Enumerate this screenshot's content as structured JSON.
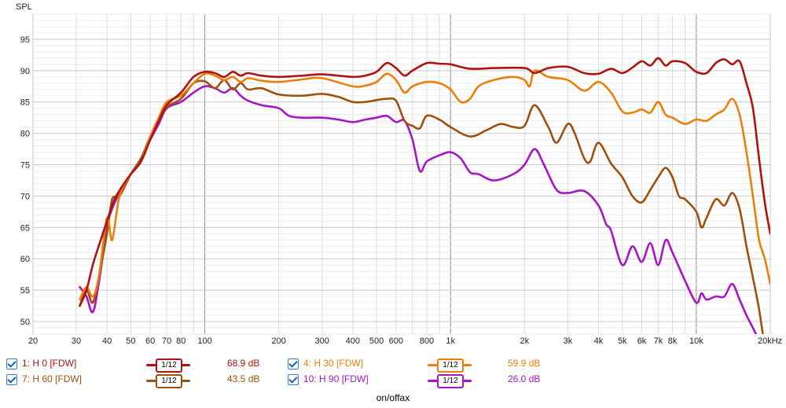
{
  "chart_data": {
    "type": "line",
    "ylabel": "SPL",
    "xlabel": "on/offax",
    "x_scale": "log",
    "xlim": [
      20,
      20000
    ],
    "ylim": [
      48,
      99
    ],
    "grid": true,
    "y_ticks": [
      50,
      55,
      60,
      65,
      70,
      75,
      80,
      85,
      90,
      95
    ],
    "x_ticks": [
      {
        "v": 20,
        "label": "20"
      },
      {
        "v": 30,
        "label": "30"
      },
      {
        "v": 40,
        "label": "40"
      },
      {
        "v": 50,
        "label": "50"
      },
      {
        "v": 60,
        "label": "60"
      },
      {
        "v": 70,
        "label": "70"
      },
      {
        "v": 80,
        "label": "80"
      },
      {
        "v": 100,
        "label": "100"
      },
      {
        "v": 200,
        "label": "200"
      },
      {
        "v": 300,
        "label": "300"
      },
      {
        "v": 400,
        "label": "400"
      },
      {
        "v": 500,
        "label": "500"
      },
      {
        "v": 600,
        "label": "600"
      },
      {
        "v": 800,
        "label": "800"
      },
      {
        "v": 1000,
        "label": "1k"
      },
      {
        "v": 2000,
        "label": "2k"
      },
      {
        "v": 3000,
        "label": "3k"
      },
      {
        "v": 4000,
        "label": "4k"
      },
      {
        "v": 5000,
        "label": "5k"
      },
      {
        "v": 6000,
        "label": "6k"
      },
      {
        "v": 7000,
        "label": "7k"
      },
      {
        "v": 8000,
        "label": "8k"
      },
      {
        "v": 10000,
        "label": "10k"
      },
      {
        "v": 20000,
        "label": "20kHz"
      }
    ],
    "series": [
      {
        "name": "1: H 0 [FDW]",
        "color": "#b0120f",
        "smoothing": "1/12",
        "value_label": "68.9 dB",
        "points": [
          [
            31,
            52.5
          ],
          [
            33,
            55
          ],
          [
            35,
            59
          ],
          [
            37,
            62
          ],
          [
            40,
            66
          ],
          [
            43,
            69.5
          ],
          [
            46,
            71.5
          ],
          [
            50,
            73.5
          ],
          [
            55,
            75.5
          ],
          [
            60,
            79
          ],
          [
            65,
            82
          ],
          [
            70,
            84.5
          ],
          [
            80,
            86.5
          ],
          [
            90,
            89
          ],
          [
            100,
            89.8
          ],
          [
            110,
            89.6
          ],
          [
            120,
            89
          ],
          [
            130,
            89.8
          ],
          [
            140,
            89.2
          ],
          [
            150,
            89.6
          ],
          [
            170,
            89.2
          ],
          [
            200,
            89
          ],
          [
            250,
            89.2
          ],
          [
            300,
            89.4
          ],
          [
            400,
            89
          ],
          [
            450,
            89.2
          ],
          [
            500,
            89.8
          ],
          [
            550,
            91.2
          ],
          [
            600,
            90.4
          ],
          [
            650,
            89.2
          ],
          [
            700,
            90
          ],
          [
            800,
            91.2
          ],
          [
            900,
            91.1
          ],
          [
            1000,
            91
          ],
          [
            1200,
            90.3
          ],
          [
            1500,
            90.4
          ],
          [
            2000,
            90.4
          ],
          [
            2200,
            89.6
          ],
          [
            2500,
            90.4
          ],
          [
            3000,
            90.6
          ],
          [
            3500,
            89.6
          ],
          [
            4000,
            89.5
          ],
          [
            4500,
            90.3
          ],
          [
            5000,
            89.6
          ],
          [
            5500,
            90.5
          ],
          [
            6000,
            91.5
          ],
          [
            6500,
            90.8
          ],
          [
            7000,
            92
          ],
          [
            7500,
            90.8
          ],
          [
            8000,
            91.5
          ],
          [
            9000,
            91.2
          ],
          [
            10000,
            89.8
          ],
          [
            11000,
            89.6
          ],
          [
            12000,
            91.2
          ],
          [
            13000,
            91.8
          ],
          [
            14000,
            91
          ],
          [
            15000,
            91.5
          ],
          [
            16000,
            88
          ],
          [
            17000,
            84
          ],
          [
            18000,
            76
          ],
          [
            19000,
            69
          ],
          [
            20000,
            64
          ]
        ]
      },
      {
        "name": "4: H 30 [FDW]",
        "color": "#ec7e0c",
        "smoothing": "1/12",
        "value_label": "59.9 dB",
        "points": [
          [
            31,
            53.5
          ],
          [
            33,
            55.5
          ],
          [
            35,
            54
          ],
          [
            37,
            57
          ],
          [
            40,
            66.5
          ],
          [
            42,
            63
          ],
          [
            45,
            70
          ],
          [
            50,
            73.5
          ],
          [
            55,
            75.5
          ],
          [
            60,
            79.5
          ],
          [
            65,
            82.5
          ],
          [
            70,
            85
          ],
          [
            80,
            86
          ],
          [
            90,
            88
          ],
          [
            100,
            89.5
          ],
          [
            110,
            89.2
          ],
          [
            120,
            88.5
          ],
          [
            130,
            89
          ],
          [
            140,
            88.2
          ],
          [
            150,
            88.8
          ],
          [
            170,
            88.4
          ],
          [
            200,
            88.2
          ],
          [
            250,
            88.6
          ],
          [
            300,
            88.8
          ],
          [
            400,
            87.5
          ],
          [
            450,
            87.6
          ],
          [
            500,
            88.2
          ],
          [
            550,
            89.5
          ],
          [
            600,
            88.5
          ],
          [
            650,
            86.5
          ],
          [
            700,
            87.5
          ],
          [
            800,
            88.2
          ],
          [
            900,
            88
          ],
          [
            1000,
            87
          ],
          [
            1100,
            85
          ],
          [
            1200,
            85.5
          ],
          [
            1300,
            87.5
          ],
          [
            1500,
            88.5
          ],
          [
            1800,
            89
          ],
          [
            2000,
            88.5
          ],
          [
            2100,
            87.5
          ],
          [
            2200,
            90
          ],
          [
            2500,
            89
          ],
          [
            3000,
            88.5
          ],
          [
            3500,
            86.8
          ],
          [
            4000,
            88.2
          ],
          [
            4500,
            86.5
          ],
          [
            5000,
            83.5
          ],
          [
            5500,
            83.3
          ],
          [
            6000,
            83.8
          ],
          [
            6500,
            83.3
          ],
          [
            7000,
            85
          ],
          [
            7500,
            83
          ],
          [
            8000,
            82.5
          ],
          [
            9000,
            81.5
          ],
          [
            10000,
            82.2
          ],
          [
            11000,
            82
          ],
          [
            12000,
            83
          ],
          [
            13000,
            83.8
          ],
          [
            14000,
            85.5
          ],
          [
            15000,
            83
          ],
          [
            16000,
            77
          ],
          [
            17000,
            70
          ],
          [
            18000,
            63
          ],
          [
            19000,
            60
          ],
          [
            20000,
            56
          ]
        ]
      },
      {
        "name": "7: H 60 [FDW]",
        "color": "#a0500a",
        "smoothing": "1/12",
        "value_label": "43.5 dB",
        "points": [
          [
            31,
            52.5
          ],
          [
            33,
            55
          ],
          [
            35,
            53
          ],
          [
            37,
            57
          ],
          [
            40,
            64
          ],
          [
            42,
            69.5
          ],
          [
            45,
            70
          ],
          [
            50,
            73.5
          ],
          [
            55,
            76
          ],
          [
            60,
            79.5
          ],
          [
            65,
            82
          ],
          [
            70,
            84.2
          ],
          [
            80,
            85.5
          ],
          [
            90,
            88
          ],
          [
            100,
            88.3
          ],
          [
            110,
            87.2
          ],
          [
            120,
            88.5
          ],
          [
            130,
            87
          ],
          [
            140,
            88
          ],
          [
            150,
            87
          ],
          [
            170,
            87.2
          ],
          [
            200,
            86.2
          ],
          [
            250,
            86
          ],
          [
            300,
            86.3
          ],
          [
            350,
            85.8
          ],
          [
            400,
            85
          ],
          [
            450,
            85
          ],
          [
            500,
            85.3
          ],
          [
            550,
            85.5
          ],
          [
            600,
            85.2
          ],
          [
            650,
            82
          ],
          [
            700,
            81.2
          ],
          [
            750,
            80.8
          ],
          [
            800,
            82.8
          ],
          [
            900,
            82.2
          ],
          [
            1000,
            81
          ],
          [
            1200,
            79.5
          ],
          [
            1400,
            80.5
          ],
          [
            1600,
            81.5
          ],
          [
            1800,
            81
          ],
          [
            2000,
            81.2
          ],
          [
            2200,
            84.5
          ],
          [
            2500,
            81
          ],
          [
            2700,
            78.5
          ],
          [
            3000,
            81.5
          ],
          [
            3200,
            80
          ],
          [
            3500,
            76
          ],
          [
            3700,
            75.5
          ],
          [
            4000,
            78.5
          ],
          [
            4500,
            75.2
          ],
          [
            5000,
            73
          ],
          [
            5500,
            70
          ],
          [
            6000,
            69
          ],
          [
            6500,
            71
          ],
          [
            7000,
            73
          ],
          [
            7500,
            74.5
          ],
          [
            8000,
            73
          ],
          [
            8500,
            70
          ],
          [
            9000,
            69.5
          ],
          [
            10000,
            67.5
          ],
          [
            10500,
            65
          ],
          [
            11000,
            66.5
          ],
          [
            12000,
            69.5
          ],
          [
            13000,
            68.5
          ],
          [
            14000,
            70.5
          ],
          [
            15000,
            68
          ],
          [
            16000,
            62
          ],
          [
            17000,
            57
          ],
          [
            18000,
            52
          ],
          [
            19000,
            46
          ],
          [
            20000,
            42
          ]
        ]
      },
      {
        "name": "10: H 90 [FDW]",
        "color": "#a615c7",
        "smoothing": "1/12",
        "value_label": "26.0 dB",
        "points": [
          [
            31,
            55.5
          ],
          [
            33,
            54
          ],
          [
            35,
            51.5
          ],
          [
            37,
            56
          ],
          [
            40,
            65
          ],
          [
            42,
            68
          ],
          [
            45,
            70.5
          ],
          [
            50,
            73.5
          ],
          [
            55,
            76
          ],
          [
            60,
            79
          ],
          [
            65,
            81.5
          ],
          [
            70,
            84
          ],
          [
            80,
            85
          ],
          [
            90,
            86.5
          ],
          [
            100,
            87.5
          ],
          [
            110,
            87.2
          ],
          [
            120,
            86.5
          ],
          [
            130,
            87.2
          ],
          [
            140,
            86
          ],
          [
            150,
            85.2
          ],
          [
            170,
            84.5
          ],
          [
            200,
            84
          ],
          [
            220,
            82.8
          ],
          [
            250,
            82.5
          ],
          [
            300,
            82.5
          ],
          [
            350,
            82.2
          ],
          [
            400,
            81.8
          ],
          [
            450,
            82.2
          ],
          [
            500,
            82.5
          ],
          [
            550,
            82.8
          ],
          [
            600,
            81.8
          ],
          [
            650,
            82
          ],
          [
            700,
            79
          ],
          [
            750,
            74
          ],
          [
            800,
            75.5
          ],
          [
            900,
            76.5
          ],
          [
            1000,
            77
          ],
          [
            1100,
            76
          ],
          [
            1200,
            73.8
          ],
          [
            1300,
            73.5
          ],
          [
            1500,
            72.5
          ],
          [
            1800,
            73.5
          ],
          [
            2000,
            75
          ],
          [
            2200,
            77.5
          ],
          [
            2400,
            75
          ],
          [
            2700,
            71
          ],
          [
            3000,
            70.5
          ],
          [
            3500,
            70.8
          ],
          [
            4000,
            68.5
          ],
          [
            4300,
            65.5
          ],
          [
            4500,
            64.5
          ],
          [
            5000,
            59
          ],
          [
            5500,
            62
          ],
          [
            6000,
            59.5
          ],
          [
            6500,
            62.5
          ],
          [
            7000,
            59
          ],
          [
            7500,
            63
          ],
          [
            8000,
            61
          ],
          [
            9000,
            56.5
          ],
          [
            10000,
            53
          ],
          [
            10500,
            54.5
          ],
          [
            11000,
            53.5
          ],
          [
            12000,
            54
          ],
          [
            13000,
            54
          ],
          [
            14000,
            56
          ],
          [
            15000,
            53.5
          ],
          [
            16000,
            51
          ],
          [
            17000,
            49
          ],
          [
            18000,
            47
          ],
          [
            19000,
            46
          ],
          [
            20000,
            45
          ]
        ]
      }
    ]
  }
}
